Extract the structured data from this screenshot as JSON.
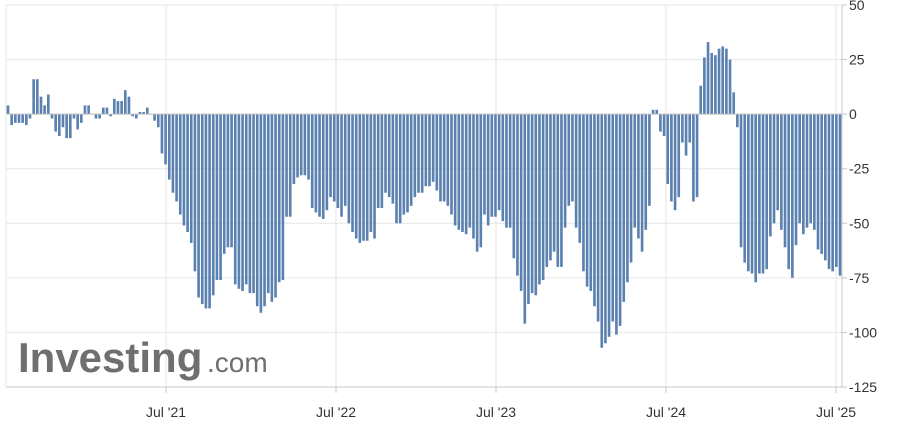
{
  "watermark": {
    "brand": "Investing",
    "suffix": ".com"
  },
  "colors": {
    "bar": "#5b81b0",
    "grid": "#e6e6e6",
    "axis": "#c8c8c8",
    "zero": "#bdbdbd"
  },
  "chart_data": {
    "type": "bar",
    "title": "",
    "xlabel": "",
    "ylabel": "",
    "ylim": [
      -125,
      50
    ],
    "yticks": [
      50,
      25,
      0,
      -25,
      -50,
      -75,
      -100,
      -125
    ],
    "ytick_labels": [
      "50",
      "25",
      "0",
      "-25",
      "-50",
      "-75",
      "-100",
      "-125"
    ],
    "xticks": [
      "Jul '21",
      "Jul '22",
      "Jul '23",
      "Jul '24",
      "Jul '25"
    ],
    "grid": true,
    "legend": "none",
    "start": "2020-07",
    "frequency": "weekly",
    "values": [
      4,
      -5,
      -4,
      -4,
      -4,
      -5,
      -2,
      16,
      16,
      8,
      4,
      9,
      -2,
      -8,
      -10,
      -6,
      -11,
      -11,
      -2,
      -7,
      -4,
      4,
      4,
      0,
      -2,
      -2,
      3,
      3,
      -1,
      7,
      6,
      6,
      11,
      8,
      -1,
      -2,
      1,
      1,
      3,
      0,
      -3,
      -6,
      -18,
      -23,
      -30,
      -36,
      -40,
      -46,
      -51,
      -54,
      -59,
      -72,
      -84,
      -87,
      -89,
      -89,
      -83,
      -76,
      -76,
      -64,
      -61,
      -61,
      -78,
      -80,
      -81,
      -78,
      -82,
      -82,
      -88,
      -91,
      -88,
      -82,
      -86,
      -84,
      -77,
      -76,
      -47,
      -47,
      -32,
      -29,
      -28,
      -28,
      -30,
      -43,
      -45,
      -47,
      -48,
      -44,
      -38,
      -40,
      -43,
      -47,
      -42,
      -50,
      -54,
      -57,
      -59,
      -58,
      -58,
      -54,
      -57,
      -43,
      -43,
      -36,
      -38,
      -41,
      -50,
      -50,
      -46,
      -45,
      -42,
      -38,
      -36,
      -36,
      -33,
      -33,
      -31,
      -35,
      -40,
      -40,
      -42,
      -46,
      -51,
      -53,
      -54,
      -55,
      -52,
      -57,
      -63,
      -61,
      -46,
      -51,
      -47,
      -47,
      -44,
      -49,
      -52,
      -52,
      -66,
      -74,
      -81,
      -96,
      -87,
      -82,
      -83,
      -78,
      -76,
      -70,
      -67,
      -63,
      -70,
      -70,
      -52,
      -42,
      -40,
      -52,
      -59,
      -72,
      -79,
      -81,
      -88,
      -95,
      -107,
      -105,
      -102,
      -95,
      -101,
      -97,
      -86,
      -77,
      -68,
      -52,
      -57,
      -63,
      -53,
      -42,
      2,
      2,
      -8,
      -10,
      -32,
      -40,
      -44,
      -38,
      -13,
      -19,
      -13,
      -40,
      -38,
      13,
      26,
      33,
      28,
      27,
      30,
      31,
      30,
      25,
      10,
      -6,
      -61,
      -68,
      -72,
      -73,
      -77,
      -73,
      -73,
      -71,
      -56,
      -50,
      -44,
      -53,
      -61,
      -71,
      -75,
      -60,
      -50,
      -55,
      -52,
      -50,
      -53,
      -62,
      -64,
      -67,
      -71,
      -72,
      -70,
      -74
    ]
  }
}
